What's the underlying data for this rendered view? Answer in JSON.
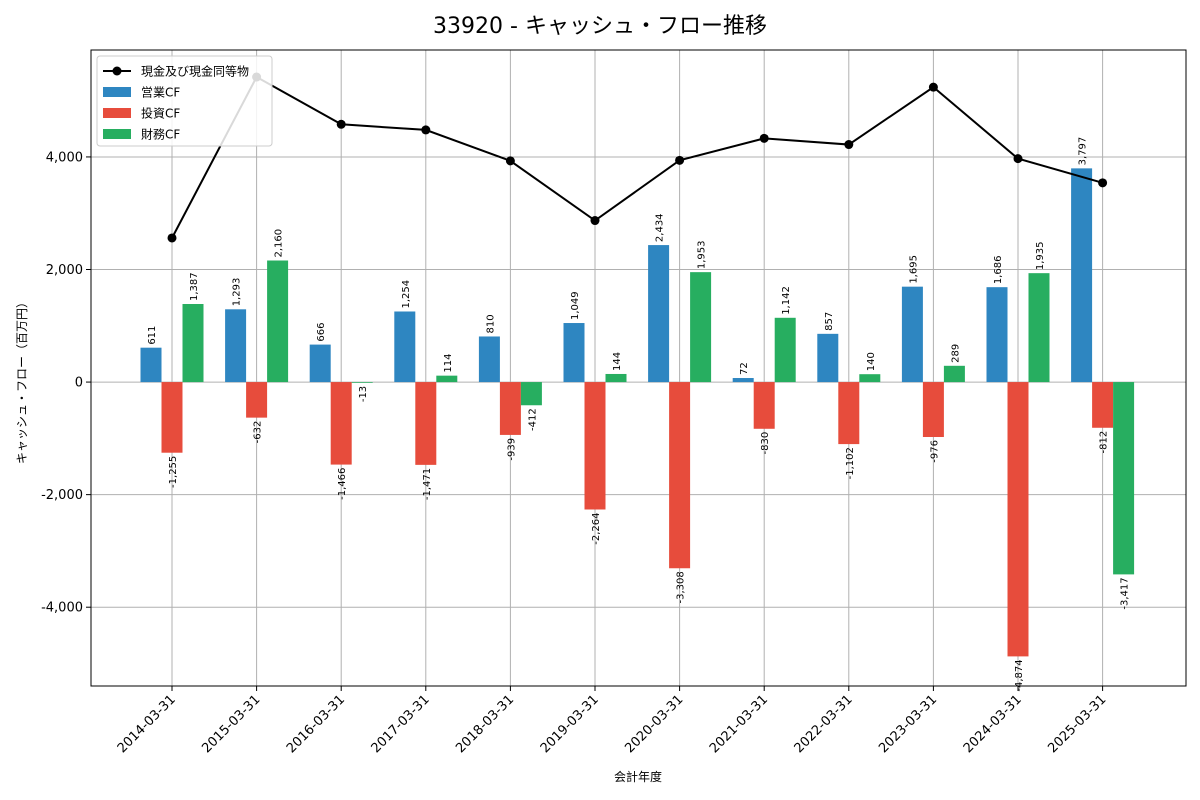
{
  "chart_data": {
    "type": "bar",
    "title": "33920 - キャッシュ・フロー推移",
    "xlabel": "会計年度",
    "ylabel": "キャッシュ・フロー（百万円）",
    "ylim": [
      -5400,
      5900
    ],
    "yticks": [
      -4000,
      -2000,
      0,
      2000,
      4000
    ],
    "ytick_labels": [
      "-4,000",
      "-2,000",
      "0",
      "2,000",
      "4,000"
    ],
    "grid": true,
    "legend_position": "top-left",
    "categories": [
      "2014-03-31",
      "2015-03-31",
      "2016-03-31",
      "2017-03-31",
      "2018-03-31",
      "2019-03-31",
      "2020-03-31",
      "2021-03-31",
      "2022-03-31",
      "2023-03-31",
      "2024-03-31",
      "2025-03-31"
    ],
    "series": [
      {
        "name": "営業CF",
        "kind": "bar",
        "color": "#2e86c1",
        "values": [
          611,
          1293,
          666,
          1254,
          810,
          1049,
          2434,
          72,
          857,
          1695,
          1686,
          3797
        ],
        "labels": [
          "611",
          "1,293",
          "666",
          "1,254",
          "810",
          "1,049",
          "2,434",
          "72",
          "857",
          "1,695",
          "1,686",
          "3,797"
        ]
      },
      {
        "name": "投資CF",
        "kind": "bar",
        "color": "#e74c3c",
        "values": [
          -1255,
          -632,
          -1466,
          -1471,
          -939,
          -2264,
          -3308,
          -830,
          -1102,
          -976,
          -4874,
          -812
        ],
        "labels": [
          "-1,255",
          "-632",
          "-1,466",
          "-1,471",
          "-939",
          "-2,264",
          "-3,308",
          "-830",
          "-1,102",
          "-976",
          "-4,874",
          "-812"
        ]
      },
      {
        "name": "財務CF",
        "kind": "bar",
        "color": "#27ae60",
        "values": [
          1387,
          2160,
          -13,
          114,
          -412,
          144,
          1953,
          1142,
          140,
          289,
          1935,
          -3417
        ],
        "labels": [
          "1,387",
          "2,160",
          "-13",
          "114",
          "-412",
          "144",
          "1,953",
          "1,142",
          "140",
          "289",
          "1,935",
          "-3,417"
        ]
      },
      {
        "name": "現金及び現金同等物",
        "kind": "line",
        "color": "#000000",
        "values": [
          2560,
          5420,
          4580,
          4480,
          3930,
          2870,
          3940,
          4330,
          4220,
          5240,
          3970,
          3540
        ]
      }
    ]
  }
}
